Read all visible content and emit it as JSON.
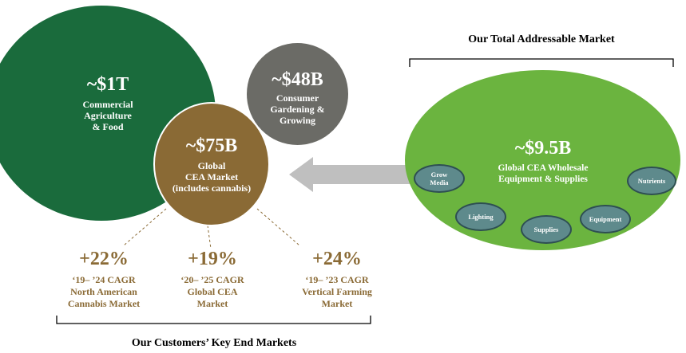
{
  "colors": {
    "dark_green": "#1a6b3c",
    "gray": "#6b6b66",
    "brown": "#8a6a35",
    "light_green": "#6bb43f",
    "teal": "#5e8a8c",
    "arrow": "#bfbfbf"
  },
  "total_market": {
    "heading": "Our Total Addressable Market",
    "value": "~$9.5B",
    "label_line1": "Global CEA Wholesale",
    "label_line2": "Equipment & Supplies",
    "segments": [
      {
        "line1": "Grow",
        "line2": "Media"
      },
      {
        "line1": "Nutrients",
        "line2": ""
      },
      {
        "line1": "Lighting",
        "line2": ""
      },
      {
        "line1": "Equipment",
        "line2": ""
      },
      {
        "line1": "Supplies",
        "line2": ""
      }
    ]
  },
  "circles": {
    "agriculture": {
      "value": "~$1T",
      "line1": "Commercial",
      "line2": "Agriculture",
      "line3": "& Food"
    },
    "gardening": {
      "value": "~$48B",
      "line1": "Consumer",
      "line2": "Gardening &",
      "line3": "Growing"
    },
    "cea": {
      "value": "~$75B",
      "line1": "Global",
      "line2": "CEA Market",
      "line3": "(includes cannabis)"
    }
  },
  "cagr": [
    {
      "value": "+22%",
      "line1": "‘19– ’24 CAGR",
      "line2": "North American",
      "line3": "Cannabis Market"
    },
    {
      "value": "+19%",
      "line1": "‘20– ’25 CAGR",
      "line2": "Global CEA",
      "line3": "Market"
    },
    {
      "value": "+24%",
      "line1": "‘19– ’23 CAGR",
      "line2": "Vertical Farming",
      "line3": "Market"
    }
  ],
  "end_markets": {
    "heading": "Our Customers’ Key End Markets"
  }
}
